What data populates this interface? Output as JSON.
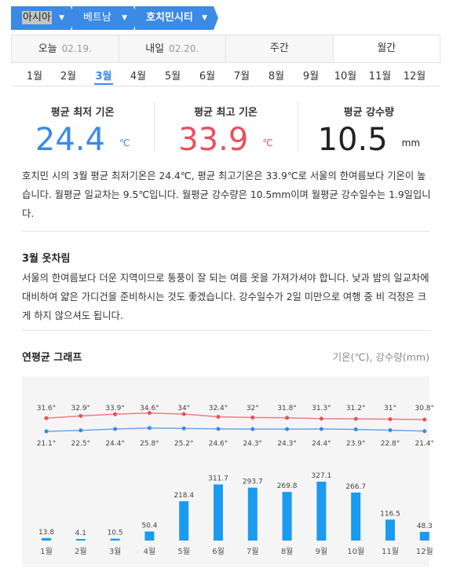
{
  "breadcrumb": {
    "region": "아시아",
    "country": "베트남",
    "city": "호치민시티"
  },
  "day_tabs": [
    {
      "label": "오늘",
      "date": "02.19."
    },
    {
      "label": "내일",
      "date": "02.20."
    },
    {
      "label": "주간",
      "date": ""
    },
    {
      "label": "월간",
      "date": ""
    }
  ],
  "months": [
    "1월",
    "2월",
    "3월",
    "4월",
    "5월",
    "6월",
    "7월",
    "8월",
    "9월",
    "10월",
    "11월",
    "12월"
  ],
  "selected_month_index": 2,
  "stats": {
    "min": {
      "label": "평균 최저 기온",
      "value": "24.4",
      "unit": "℃"
    },
    "max": {
      "label": "평균 최고 기온",
      "value": "33.9",
      "unit": "℃"
    },
    "rain": {
      "label": "평균 강수량",
      "value": "10.5",
      "unit": "mm"
    }
  },
  "summary_text": "호치민 시의 3월 평균 최저기온은 24.4℃, 평균 최고기온은 33.9℃로 서울의 한여름보다 기온이 높습니다. 월평균 일교차는 9.5℃입니다. 월평균 강수량은 10.5mm이며 월평균 강수일수는 1.9일입니다.",
  "clothing": {
    "title": "3월 옷차림",
    "text": "서울의 한여름보다 더운 지역이므로 통풍이 잘 되는 여름 옷을 가져가셔야 합니다. 낮과 밤의 일교차에 대비하여 얇은 가디건을 준비하시는 것도 좋겠습니다. 강수일수가 2일 미만으로 여행 중 비 걱정은 크게 하지 않으셔도 됩니다."
  },
  "graph": {
    "title": "연평균 그래프",
    "units": "기온(℃), 강수량(mm)"
  },
  "chart_data": {
    "type": "bar",
    "categories": [
      "1월",
      "2월",
      "3월",
      "4월",
      "5월",
      "6월",
      "7월",
      "8월",
      "9월",
      "10월",
      "11월",
      "12월"
    ],
    "series": [
      {
        "values": [
          31.6,
          32.9,
          33.9,
          34.6,
          34,
          32.4,
          32,
          31.8,
          31.3,
          31.2,
          31,
          30.8
        ],
        "color": "#f07a86"
      },
      {
        "values": [
          21.1,
          22.5,
          24.4,
          25.8,
          25.2,
          24.6,
          24.3,
          24.3,
          24.4,
          23.9,
          22.8,
          21.4
        ],
        "color": "#6aa6e8"
      },
      {
        "values": [
          13.8,
          4.1,
          10.5,
          50.4,
          218.4,
          311.7,
          293.7,
          269.8,
          327.1,
          266.7,
          116.5,
          48.3
        ],
        "color": "#1a9bf0"
      }
    ],
    "max_labels": [
      "31.6°",
      "32.9°",
      "33.9°",
      "34.6°",
      "34°",
      "32.4°",
      "32°",
      "31.8°",
      "31.3°",
      "31.2°",
      "31°",
      "30.8°"
    ],
    "min_labels": [
      "21.1°",
      "22.5°",
      "24.4°",
      "25.8°",
      "25.2°",
      "24.6°",
      "24.3°",
      "24.3°",
      "24.4°",
      "23.9°",
      "22.8°",
      "21.4°"
    ],
    "rain_labels": [
      "13.8",
      "4.1",
      "10.5",
      "50.4",
      "218.4",
      "311.7",
      "293.7",
      "269.8",
      "327.1",
      "266.7",
      "116.5",
      "48.3"
    ]
  }
}
